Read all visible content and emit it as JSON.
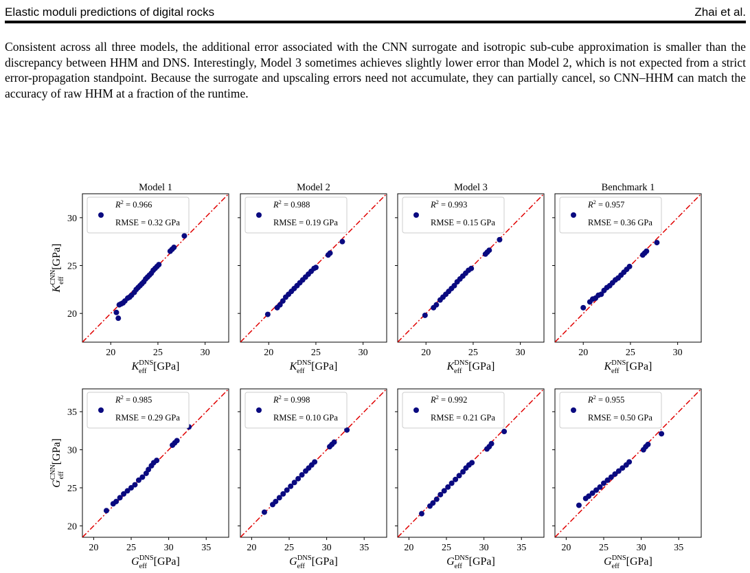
{
  "header": {
    "title": "Elastic moduli predictions of digital rocks",
    "authors": "Zhai et al."
  },
  "paragraph": "Consistent across all three models, the additional error associated with the CNN surrogate and isotropic sub-cube approximation is smaller than the discrepancy between HHM and DNS. Interestingly, Model 3 sometimes achieves slightly lower error than Model 2, which is not expected from a strict error-propagation standpoint. Because the surrogate and upscaling errors need not accumulate, they can partially cancel, so CNN–HHM can match the accuracy of raw HHM at a fraction of the runtime.",
  "figure": {
    "marker_color": "#0a0a80",
    "line_color": "#e00000",
    "rows": [
      {
        "quantity": "K",
        "ylabel_base": "K",
        "ylabel_sup": "CNN",
        "ylabel_sub": "eff",
        "ylabel_unit": "[GPa]",
        "xlabel_base": "K",
        "xlabel_sup": "DNS",
        "xlabel_sub": "eff",
        "xlabel_unit": "[GPa]",
        "lim": [
          17,
          32.5
        ],
        "xticks": [
          20,
          25,
          30
        ],
        "yticks": [
          20,
          25,
          30
        ]
      },
      {
        "quantity": "G",
        "ylabel_base": "G",
        "ylabel_sup": "CNN",
        "ylabel_sub": "eff",
        "ylabel_unit": "[GPa]",
        "xlabel_base": "G",
        "xlabel_sup": "DNS",
        "xlabel_sub": "eff",
        "xlabel_unit": "[GPa]",
        "lim": [
          18.5,
          38
        ],
        "xticks": [
          20,
          25,
          30,
          35
        ],
        "yticks": [
          20,
          25,
          30,
          35
        ]
      }
    ]
  },
  "chart_data": [
    {
      "type": "scatter",
      "title": "Model 1",
      "row": 0,
      "col": 0,
      "xlabel": "K_eff^DNS [GPa]",
      "ylabel": "K_eff^CNN [GPa]",
      "xlim": [
        17,
        32.5
      ],
      "ylim": [
        17,
        32.5
      ],
      "legend": {
        "r2": "0.966",
        "rmse": "0.32 GPa"
      },
      "points": [
        [
          20.6,
          20.1
        ],
        [
          20.8,
          19.5
        ],
        [
          20.9,
          20.9
        ],
        [
          21.1,
          21.0
        ],
        [
          21.3,
          21.1
        ],
        [
          21.5,
          21.3
        ],
        [
          21.8,
          21.6
        ],
        [
          22.0,
          21.7
        ],
        [
          22.2,
          21.9
        ],
        [
          22.5,
          22.2
        ],
        [
          22.7,
          22.5
        ],
        [
          22.9,
          22.7
        ],
        [
          23.1,
          22.9
        ],
        [
          23.3,
          23.1
        ],
        [
          23.5,
          23.3
        ],
        [
          23.7,
          23.6
        ],
        [
          23.9,
          23.8
        ],
        [
          24.1,
          24.0
        ],
        [
          24.3,
          24.2
        ],
        [
          24.5,
          24.5
        ],
        [
          24.7,
          24.7
        ],
        [
          24.9,
          24.9
        ],
        [
          25.1,
          25.1
        ],
        [
          26.3,
          26.5
        ],
        [
          26.5,
          26.7
        ],
        [
          26.7,
          26.9
        ],
        [
          27.8,
          28.1
        ]
      ]
    },
    {
      "type": "scatter",
      "title": "Model 2",
      "row": 0,
      "col": 1,
      "xlabel": "K_eff^DNS [GPa]",
      "ylabel": "K_eff^CNN [GPa]",
      "xlim": [
        17,
        32.5
      ],
      "ylim": [
        17,
        32.5
      ],
      "legend": {
        "r2": "0.988",
        "rmse": "0.19 GPa"
      },
      "points": [
        [
          19.9,
          19.9
        ],
        [
          20.9,
          20.6
        ],
        [
          21.2,
          20.9
        ],
        [
          21.5,
          21.3
        ],
        [
          21.8,
          21.7
        ],
        [
          22.1,
          22.0
        ],
        [
          22.4,
          22.3
        ],
        [
          22.7,
          22.6
        ],
        [
          23.0,
          22.9
        ],
        [
          23.3,
          23.2
        ],
        [
          23.6,
          23.5
        ],
        [
          23.9,
          23.8
        ],
        [
          24.2,
          24.1
        ],
        [
          24.5,
          24.4
        ],
        [
          24.8,
          24.7
        ],
        [
          25.0,
          24.8
        ],
        [
          26.3,
          26.1
        ],
        [
          26.5,
          26.3
        ],
        [
          27.8,
          27.5
        ]
      ]
    },
    {
      "type": "scatter",
      "title": "Model 3",
      "row": 0,
      "col": 2,
      "xlabel": "K_eff^DNS [GPa]",
      "ylabel": "K_eff^CNN [GPa]",
      "xlim": [
        17,
        32.5
      ],
      "ylim": [
        17,
        32.5
      ],
      "legend": {
        "r2": "0.993",
        "rmse": "0.15 GPa"
      },
      "points": [
        [
          19.9,
          19.8
        ],
        [
          20.8,
          20.6
        ],
        [
          21.1,
          20.9
        ],
        [
          21.5,
          21.4
        ],
        [
          21.8,
          21.7
        ],
        [
          22.1,
          22.0
        ],
        [
          22.4,
          22.3
        ],
        [
          22.7,
          22.6
        ],
        [
          23.0,
          22.9
        ],
        [
          23.3,
          23.3
        ],
        [
          23.6,
          23.6
        ],
        [
          23.9,
          23.9
        ],
        [
          24.2,
          24.2
        ],
        [
          24.5,
          24.5
        ],
        [
          24.8,
          24.7
        ],
        [
          26.3,
          26.2
        ],
        [
          26.5,
          26.4
        ],
        [
          26.7,
          26.6
        ],
        [
          27.8,
          27.7
        ]
      ]
    },
    {
      "type": "scatter",
      "title": "Benchmark 1",
      "row": 0,
      "col": 3,
      "xlabel": "K_eff^DNS [GPa]",
      "ylabel": "K_eff^CNN [GPa]",
      "xlim": [
        17,
        32.5
      ],
      "ylim": [
        17,
        32.5
      ],
      "legend": {
        "r2": "0.957",
        "rmse": "0.36 GPa"
      },
      "points": [
        [
          20.0,
          20.6
        ],
        [
          20.7,
          21.2
        ],
        [
          21.0,
          21.5
        ],
        [
          21.3,
          21.6
        ],
        [
          21.6,
          21.9
        ],
        [
          21.9,
          22.0
        ],
        [
          22.2,
          22.4
        ],
        [
          22.5,
          22.7
        ],
        [
          22.8,
          22.9
        ],
        [
          23.1,
          23.2
        ],
        [
          23.4,
          23.5
        ],
        [
          23.7,
          23.7
        ],
        [
          24.0,
          24.0
        ],
        [
          24.3,
          24.3
        ],
        [
          24.6,
          24.6
        ],
        [
          24.9,
          24.9
        ],
        [
          26.3,
          26.1
        ],
        [
          26.5,
          26.3
        ],
        [
          26.7,
          26.5
        ],
        [
          27.8,
          27.4
        ]
      ]
    },
    {
      "type": "scatter",
      "title": "",
      "row": 1,
      "col": 0,
      "xlabel": "G_eff^DNS [GPa]",
      "ylabel": "G_eff^CNN [GPa]",
      "xlim": [
        18.5,
        38
      ],
      "ylim": [
        18.5,
        38
      ],
      "legend": {
        "r2": "0.985",
        "rmse": "0.29 GPa"
      },
      "points": [
        [
          21.7,
          22.0
        ],
        [
          22.6,
          22.9
        ],
        [
          23.0,
          23.2
        ],
        [
          23.5,
          23.7
        ],
        [
          24.0,
          24.2
        ],
        [
          24.5,
          24.6
        ],
        [
          25.0,
          25.0
        ],
        [
          25.5,
          25.4
        ],
        [
          26.0,
          26.0
        ],
        [
          26.5,
          26.4
        ],
        [
          27.0,
          26.9
        ],
        [
          27.3,
          27.4
        ],
        [
          27.7,
          27.9
        ],
        [
          28.0,
          28.3
        ],
        [
          28.4,
          28.6
        ],
        [
          30.5,
          30.6
        ],
        [
          30.8,
          30.9
        ],
        [
          31.1,
          31.2
        ],
        [
          32.7,
          33.0
        ]
      ]
    },
    {
      "type": "scatter",
      "title": "",
      "row": 1,
      "col": 1,
      "xlabel": "G_eff^DNS [GPa]",
      "ylabel": "G_eff^CNN [GPa]",
      "xlim": [
        18.5,
        38
      ],
      "ylim": [
        18.5,
        38
      ],
      "legend": {
        "r2": "0.998",
        "rmse": "0.10 GPa"
      },
      "points": [
        [
          21.7,
          21.8
        ],
        [
          22.8,
          22.8
        ],
        [
          23.2,
          23.2
        ],
        [
          23.7,
          23.7
        ],
        [
          24.2,
          24.2
        ],
        [
          24.7,
          24.7
        ],
        [
          25.2,
          25.2
        ],
        [
          25.7,
          25.7
        ],
        [
          26.2,
          26.2
        ],
        [
          26.7,
          26.7
        ],
        [
          27.2,
          27.2
        ],
        [
          27.6,
          27.6
        ],
        [
          28.0,
          28.0
        ],
        [
          28.4,
          28.4
        ],
        [
          30.4,
          30.4
        ],
        [
          30.7,
          30.7
        ],
        [
          31.0,
          31.0
        ],
        [
          32.7,
          32.6
        ]
      ]
    },
    {
      "type": "scatter",
      "title": "",
      "row": 1,
      "col": 2,
      "xlabel": "G_eff^DNS [GPa]",
      "ylabel": "G_eff^CNN [GPa]",
      "xlim": [
        18.5,
        38
      ],
      "ylim": [
        18.5,
        38
      ],
      "legend": {
        "r2": "0.992",
        "rmse": "0.21 GPa"
      },
      "points": [
        [
          21.7,
          21.6
        ],
        [
          22.8,
          22.6
        ],
        [
          23.2,
          23.0
        ],
        [
          23.7,
          23.5
        ],
        [
          24.2,
          24.1
        ],
        [
          24.7,
          24.6
        ],
        [
          25.2,
          25.1
        ],
        [
          25.7,
          25.6
        ],
        [
          26.2,
          26.1
        ],
        [
          26.7,
          26.6
        ],
        [
          27.2,
          27.1
        ],
        [
          27.6,
          27.6
        ],
        [
          28.0,
          28.0
        ],
        [
          28.4,
          28.3
        ],
        [
          30.4,
          30.1
        ],
        [
          30.7,
          30.4
        ],
        [
          31.0,
          30.8
        ],
        [
          32.7,
          32.4
        ]
      ]
    },
    {
      "type": "scatter",
      "title": "",
      "row": 1,
      "col": 3,
      "xlabel": "G_eff^DNS [GPa]",
      "ylabel": "G_eff^CNN [GPa]",
      "xlim": [
        18.5,
        38
      ],
      "ylim": [
        18.5,
        38
      ],
      "legend": {
        "r2": "0.955",
        "rmse": "0.50 GPa"
      },
      "points": [
        [
          21.7,
          22.7
        ],
        [
          22.6,
          23.6
        ],
        [
          23.0,
          23.9
        ],
        [
          23.5,
          24.3
        ],
        [
          24.0,
          24.7
        ],
        [
          24.5,
          25.1
        ],
        [
          25.0,
          25.6
        ],
        [
          25.5,
          26.0
        ],
        [
          26.0,
          26.4
        ],
        [
          26.5,
          26.8
        ],
        [
          27.0,
          27.2
        ],
        [
          27.5,
          27.6
        ],
        [
          28.0,
          28.0
        ],
        [
          28.4,
          28.4
        ],
        [
          30.3,
          30.0
        ],
        [
          30.6,
          30.4
        ],
        [
          30.9,
          30.7
        ],
        [
          32.7,
          32.1
        ]
      ]
    }
  ]
}
